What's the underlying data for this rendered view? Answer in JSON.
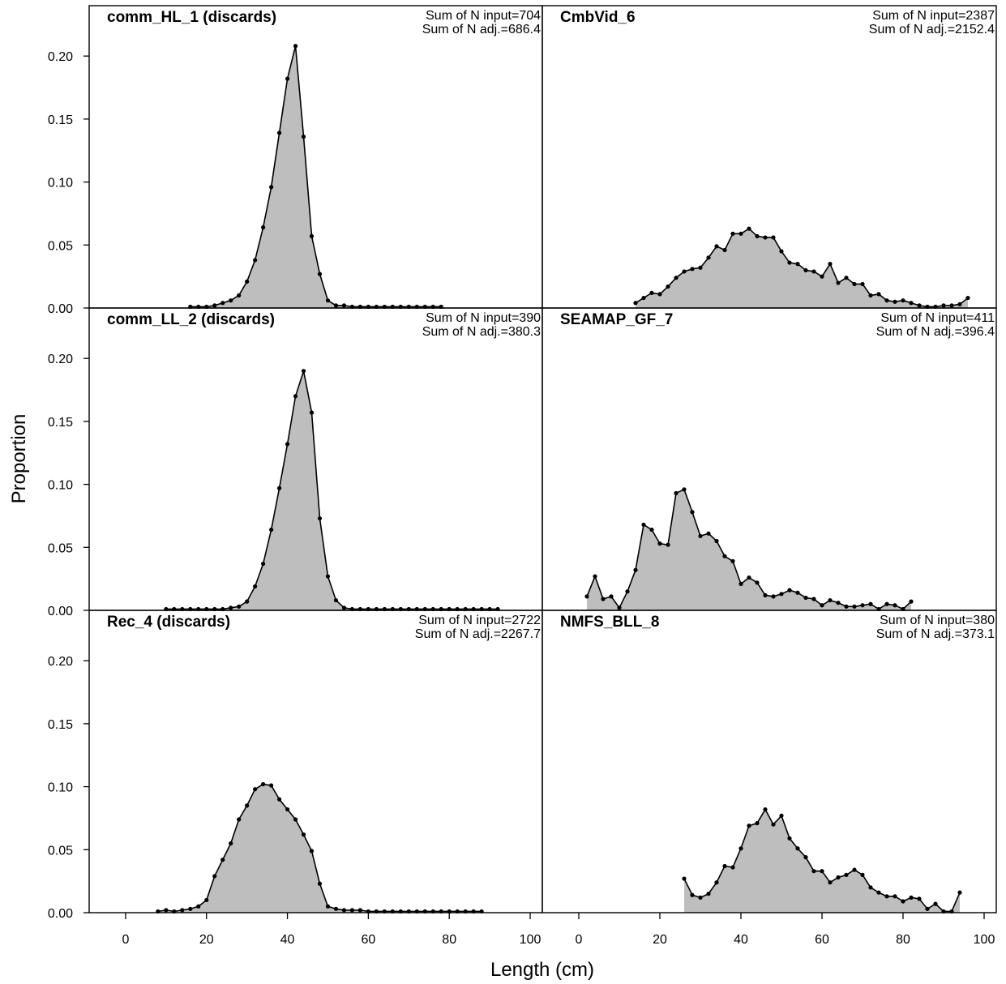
{
  "chart_data": {
    "type": "area",
    "xlabel": "Length (cm)",
    "ylabel": "Proportion",
    "xlim": [
      -9,
      103
    ],
    "ylim": [
      0,
      0.24
    ],
    "x_ticks": [
      0,
      20,
      40,
      60,
      80,
      100
    ],
    "y_ticks": [
      0.0,
      0.05,
      0.1,
      0.15,
      0.2
    ],
    "y_tick_labels": [
      "0.00",
      "0.05",
      "0.10",
      "0.15",
      "0.20"
    ],
    "grid": false,
    "panels": [
      {
        "name": "comm_HL_1 (discards)",
        "note1": "Sum of N input=704",
        "note2": "Sum of N adj.=686.4",
        "x": [
          16,
          18,
          20,
          22,
          24,
          26,
          28,
          30,
          32,
          34,
          36,
          38,
          40,
          42,
          44,
          46,
          48,
          50,
          52,
          54,
          56,
          58,
          60,
          62,
          64,
          66,
          68,
          70,
          72,
          74,
          76,
          78
        ],
        "y": [
          0.001,
          0.001,
          0.001,
          0.002,
          0.004,
          0.006,
          0.01,
          0.021,
          0.038,
          0.064,
          0.096,
          0.139,
          0.182,
          0.208,
          0.136,
          0.057,
          0.027,
          0.006,
          0.002,
          0.002,
          0.001,
          0.001,
          0.001,
          0.001,
          0.001,
          0.001,
          0.001,
          0.001,
          0.001,
          0.001,
          0.001,
          0.001
        ]
      },
      {
        "name": "CmbVid_6",
        "note1": "Sum of N input=2387",
        "note2": "Sum of N adj.=2152.4",
        "x": [
          14,
          16,
          18,
          20,
          22,
          24,
          26,
          28,
          30,
          32,
          34,
          36,
          38,
          40,
          42,
          44,
          46,
          48,
          50,
          52,
          54,
          56,
          58,
          60,
          62,
          64,
          66,
          68,
          70,
          72,
          74,
          76,
          78,
          80,
          82,
          84,
          86,
          88,
          90,
          92,
          94,
          96
        ],
        "y": [
          0.004,
          0.008,
          0.012,
          0.011,
          0.017,
          0.024,
          0.029,
          0.031,
          0.032,
          0.04,
          0.049,
          0.046,
          0.059,
          0.059,
          0.063,
          0.057,
          0.056,
          0.056,
          0.045,
          0.036,
          0.035,
          0.03,
          0.029,
          0.025,
          0.035,
          0.02,
          0.024,
          0.019,
          0.019,
          0.01,
          0.011,
          0.006,
          0.005,
          0.006,
          0.004,
          0.002,
          0.001,
          0.001,
          0.002,
          0.002,
          0.003,
          0.008
        ]
      },
      {
        "name": "comm_LL_2 (discards)",
        "note1": "Sum of N input=390",
        "note2": "Sum of N adj.=380.3",
        "x": [
          10,
          12,
          14,
          16,
          18,
          20,
          22,
          24,
          26,
          28,
          30,
          32,
          34,
          36,
          38,
          40,
          42,
          44,
          46,
          48,
          50,
          52,
          54,
          56,
          58,
          60,
          62,
          64,
          66,
          68,
          70,
          72,
          74,
          76,
          78,
          80,
          82,
          84,
          86,
          88,
          90,
          92
        ],
        "y": [
          0.001,
          0.001,
          0.001,
          0.001,
          0.001,
          0.001,
          0.001,
          0.001,
          0.002,
          0.003,
          0.007,
          0.019,
          0.037,
          0.064,
          0.097,
          0.132,
          0.17,
          0.19,
          0.157,
          0.073,
          0.027,
          0.008,
          0.002,
          0.001,
          0.001,
          0.001,
          0.001,
          0.001,
          0.001,
          0.001,
          0.001,
          0.001,
          0.001,
          0.001,
          0.001,
          0.001,
          0.001,
          0.001,
          0.001,
          0.001,
          0.001,
          0.001
        ]
      },
      {
        "name": "SEAMAP_GF_7",
        "note1": "Sum of N input=411",
        "note2": "Sum of N adj.=396.4",
        "x": [
          2,
          4,
          6,
          8,
          10,
          12,
          14,
          16,
          18,
          20,
          22,
          24,
          26,
          28,
          30,
          32,
          34,
          36,
          38,
          40,
          42,
          44,
          46,
          48,
          50,
          52,
          54,
          56,
          58,
          60,
          62,
          64,
          66,
          68,
          70,
          72,
          74,
          76,
          78,
          80,
          82
        ],
        "y": [
          0.011,
          0.027,
          0.009,
          0.011,
          0.002,
          0.015,
          0.032,
          0.068,
          0.064,
          0.053,
          0.052,
          0.093,
          0.096,
          0.078,
          0.059,
          0.061,
          0.055,
          0.043,
          0.039,
          0.021,
          0.026,
          0.022,
          0.012,
          0.011,
          0.013,
          0.016,
          0.014,
          0.01,
          0.009,
          0.004,
          0.008,
          0.006,
          0.003,
          0.003,
          0.004,
          0.005,
          0.001,
          0.005,
          0.004,
          0.001,
          0.007
        ]
      },
      {
        "name": "Rec_4 (discards)",
        "note1": "Sum of N input=2722",
        "note2": "Sum of N adj.=2267.7",
        "x": [
          8,
          10,
          12,
          14,
          16,
          18,
          20,
          22,
          24,
          26,
          28,
          30,
          32,
          34,
          36,
          38,
          40,
          42,
          44,
          46,
          48,
          50,
          52,
          54,
          56,
          58,
          60,
          62,
          64,
          66,
          68,
          70,
          72,
          74,
          76,
          78,
          80,
          82,
          84,
          86,
          88
        ],
        "y": [
          0.001,
          0.002,
          0.001,
          0.002,
          0.003,
          0.005,
          0.01,
          0.029,
          0.042,
          0.055,
          0.074,
          0.085,
          0.098,
          0.102,
          0.101,
          0.09,
          0.082,
          0.074,
          0.062,
          0.049,
          0.023,
          0.005,
          0.003,
          0.002,
          0.002,
          0.002,
          0.001,
          0.001,
          0.001,
          0.001,
          0.001,
          0.001,
          0.001,
          0.001,
          0.001,
          0.001,
          0.001,
          0.001,
          0.001,
          0.001,
          0.001
        ]
      },
      {
        "name": "NMFS_BLL_8",
        "note1": "Sum of N input=380",
        "note2": "Sum of N adj.=373.1",
        "x": [
          26,
          28,
          30,
          32,
          34,
          36,
          38,
          40,
          42,
          44,
          46,
          48,
          50,
          52,
          54,
          56,
          58,
          60,
          62,
          64,
          66,
          68,
          70,
          72,
          74,
          76,
          78,
          80,
          82,
          84,
          86,
          88,
          90,
          92,
          94
        ],
        "y": [
          0.027,
          0.014,
          0.012,
          0.015,
          0.024,
          0.037,
          0.036,
          0.051,
          0.069,
          0.071,
          0.082,
          0.07,
          0.077,
          0.059,
          0.051,
          0.044,
          0.033,
          0.033,
          0.024,
          0.028,
          0.03,
          0.034,
          0.03,
          0.02,
          0.016,
          0.013,
          0.013,
          0.009,
          0.012,
          0.011,
          0.003,
          0.007,
          0.001,
          0.001,
          0.016
        ]
      }
    ]
  }
}
